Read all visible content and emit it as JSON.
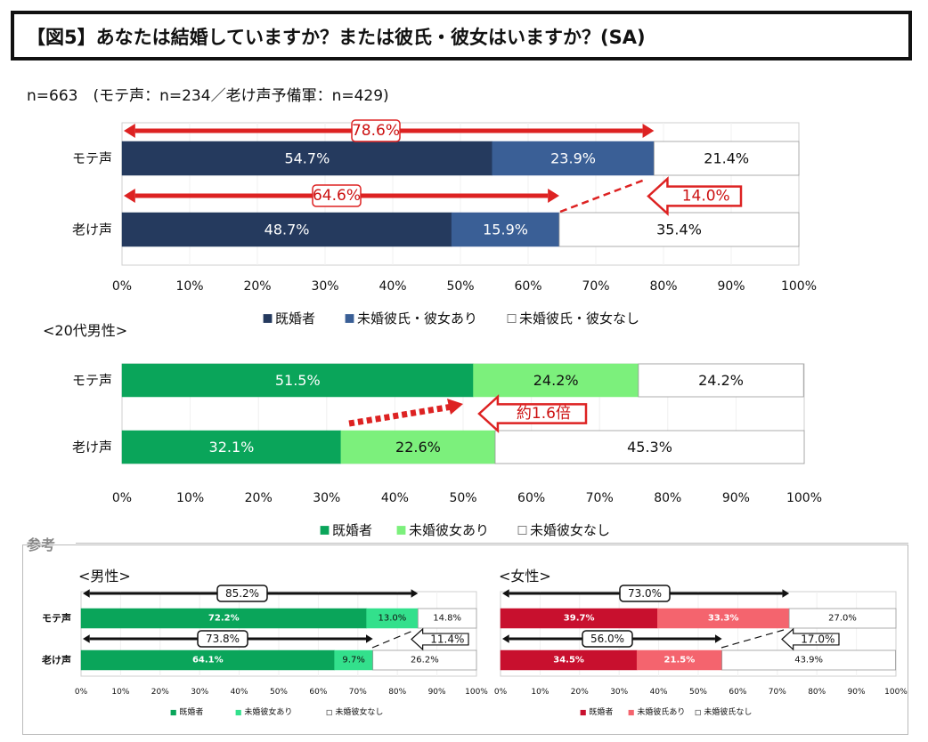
{
  "title": "【図5】あなたは結婚していますか？または彼氏・彼女はいますか？(SA)",
  "sample": "n=663　(モテ声：n=234／老け声予備軍：n=429)",
  "section2_label": "<20代男性>",
  "reference_label": "参考",
  "male_label": "<男性>",
  "female_label": "<女性>",
  "chart_data": [
    {
      "id": "c1",
      "type": "bar",
      "stacked": true,
      "orientation": "horizontal",
      "categories": [
        "モテ声",
        "老け声"
      ],
      "series": [
        {
          "name": "既婚者",
          "values": [
            54.7,
            48.7
          ],
          "labels": [
            "54.7%",
            "48.7%"
          ],
          "color": "#253a5e"
        },
        {
          "name": "未婚彼氏・彼女あり",
          "values": [
            23.9,
            15.9
          ],
          "labels": [
            "23.9%",
            "15.9%"
          ],
          "color": "#3a5f96"
        },
        {
          "name": "未婚彼氏・彼女なし",
          "values": [
            21.4,
            35.4
          ],
          "labels": [
            "21.4%",
            "35.4%"
          ],
          "color": "#ffffff"
        }
      ],
      "xlim": [
        0,
        100
      ],
      "ticks": [
        "0%",
        "10%",
        "20%",
        "30%",
        "40%",
        "50%",
        "60%",
        "70%",
        "80%",
        "90%",
        "100%"
      ],
      "legend": "bottom",
      "totals": [
        {
          "label": "78.6%",
          "value": 78.6,
          "row": 0
        },
        {
          "label": "64.6%",
          "value": 64.6,
          "row": 1
        }
      ],
      "diff": {
        "label": "14.0%"
      }
    },
    {
      "id": "c2",
      "type": "bar",
      "stacked": true,
      "orientation": "horizontal",
      "categories": [
        "モテ声",
        "老け声"
      ],
      "series": [
        {
          "name": "既婚者",
          "values": [
            51.5,
            32.1
          ],
          "labels": [
            "51.5%",
            "32.1%"
          ],
          "color": "#0aa55a"
        },
        {
          "name": "未婚彼女あり",
          "values": [
            24.2,
            22.6
          ],
          "labels": [
            "24.2%",
            "22.6%"
          ],
          "color": "#7cf07c"
        },
        {
          "name": "未婚彼女なし",
          "values": [
            24.2,
            45.3
          ],
          "labels": [
            "24.2%",
            "45.3%"
          ],
          "color": "#ffffff"
        }
      ],
      "xlim": [
        0,
        100
      ],
      "ticks": [
        "0%",
        "10%",
        "20%",
        "30%",
        "40%",
        "50%",
        "60%",
        "70%",
        "80%",
        "90%",
        "100%"
      ],
      "legend": "bottom",
      "diff": {
        "label": "約1.6倍"
      }
    },
    {
      "id": "c3",
      "type": "bar",
      "stacked": true,
      "orientation": "horizontal",
      "categories": [
        "モテ声",
        "老け声"
      ],
      "series": [
        {
          "name": "既婚者",
          "values": [
            72.2,
            64.1
          ],
          "labels": [
            "72.2%",
            "64.1%"
          ],
          "color": "#0aa55a"
        },
        {
          "name": "未婚彼女あり",
          "values": [
            13.0,
            9.7
          ],
          "labels": [
            "13.0%",
            "9.7%"
          ],
          "color": "#33e08c"
        },
        {
          "name": "未婚彼女なし",
          "values": [
            14.8,
            26.2
          ],
          "labels": [
            "14.8%",
            "26.2%"
          ],
          "color": "#ffffff"
        }
      ],
      "xlim": [
        0,
        100
      ],
      "ticks": [
        "0%",
        "10%",
        "20%",
        "30%",
        "40%",
        "50%",
        "60%",
        "70%",
        "80%",
        "90%",
        "100%"
      ],
      "legend": "bottom",
      "totals": [
        {
          "label": "85.2%",
          "value": 85.2,
          "row": 0
        },
        {
          "label": "73.8%",
          "value": 73.8,
          "row": 1
        }
      ],
      "diff": {
        "label": "11.4%"
      }
    },
    {
      "id": "c4",
      "type": "bar",
      "stacked": true,
      "orientation": "horizontal",
      "categories": [
        "モテ声",
        "老け声"
      ],
      "series": [
        {
          "name": "既婚者",
          "values": [
            39.7,
            34.5
          ],
          "labels": [
            "39.7%",
            "34.5%"
          ],
          "color": "#c8102e"
        },
        {
          "name": "未婚彼氏あり",
          "values": [
            33.3,
            21.5
          ],
          "labels": [
            "33.3%",
            "21.5%"
          ],
          "color": "#f4646e"
        },
        {
          "name": "未婚彼氏なし",
          "values": [
            27.0,
            43.9
          ],
          "labels": [
            "27.0%",
            "43.9%"
          ],
          "color": "#ffffff"
        }
      ],
      "xlim": [
        0,
        100
      ],
      "ticks": [
        "0%",
        "10%",
        "20%",
        "30%",
        "40%",
        "50%",
        "60%",
        "70%",
        "80%",
        "90%",
        "100%"
      ],
      "legend": "bottom",
      "totals": [
        {
          "label": "73.0%",
          "value": 73.0,
          "row": 0
        },
        {
          "label": "56.0%",
          "value": 56.0,
          "row": 1
        }
      ],
      "diff": {
        "label": "17.0%"
      }
    }
  ]
}
